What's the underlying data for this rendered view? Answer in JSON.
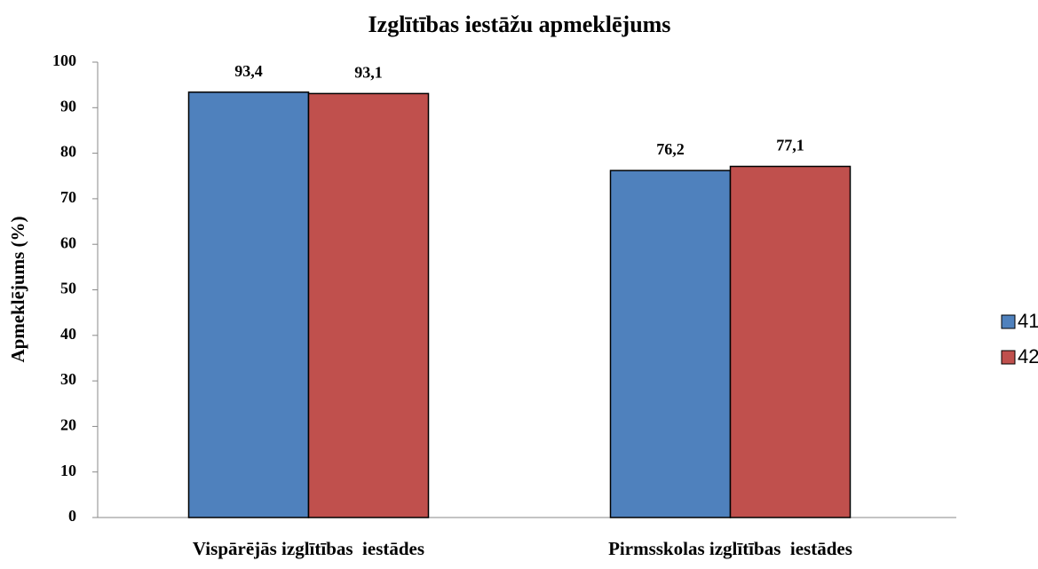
{
  "chart_data": {
    "type": "bar",
    "title": "Izglītības iestāžu apmeklējums",
    "y_label": "Apmeklējums (%)",
    "categories": [
      "Vispārējās izglītības  iestādes",
      "Pirmsskolas izglītības  iestādes"
    ],
    "series": [
      {
        "name": "41.",
        "color": "#4f81bd",
        "values": [
          93.4,
          76.2
        ],
        "value_labels": [
          "93,4",
          "76,2"
        ]
      },
      {
        "name": "42.",
        "color": "#c0504d",
        "values": [
          93.1,
          77.1
        ],
        "value_labels": [
          "93,1",
          "77,1"
        ]
      }
    ],
    "ylim": [
      0,
      100
    ],
    "yticks": [
      0,
      10,
      20,
      30,
      40,
      50,
      60,
      70,
      80,
      90,
      100
    ],
    "grid": false,
    "legend": "right"
  }
}
